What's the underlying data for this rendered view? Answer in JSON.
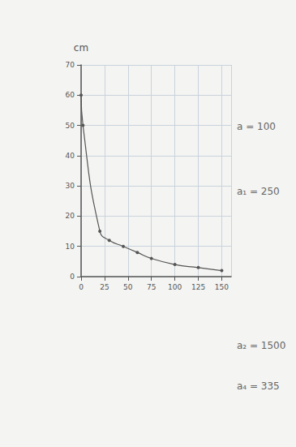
{
  "chart_data": {
    "type": "line",
    "y_label": "cm",
    "x": [
      0,
      2,
      20,
      30,
      45,
      60,
      75,
      100,
      125,
      150
    ],
    "values": [
      60,
      50,
      15,
      12,
      10,
      8,
      6,
      4,
      3,
      2
    ],
    "color": "#555555",
    "marker": "circle",
    "xlim": [
      0,
      160
    ],
    "xticks": [
      0,
      25,
      50,
      75,
      100,
      125,
      150
    ],
    "ylim": [
      0,
      70
    ],
    "yticks": [
      0,
      10,
      20,
      30,
      40,
      50,
      60
    ],
    "grid": true,
    "annotations": [
      "a = 100",
      "a₁ = 250",
      "a₂ = 1500",
      "a₄ = 335"
    ]
  }
}
